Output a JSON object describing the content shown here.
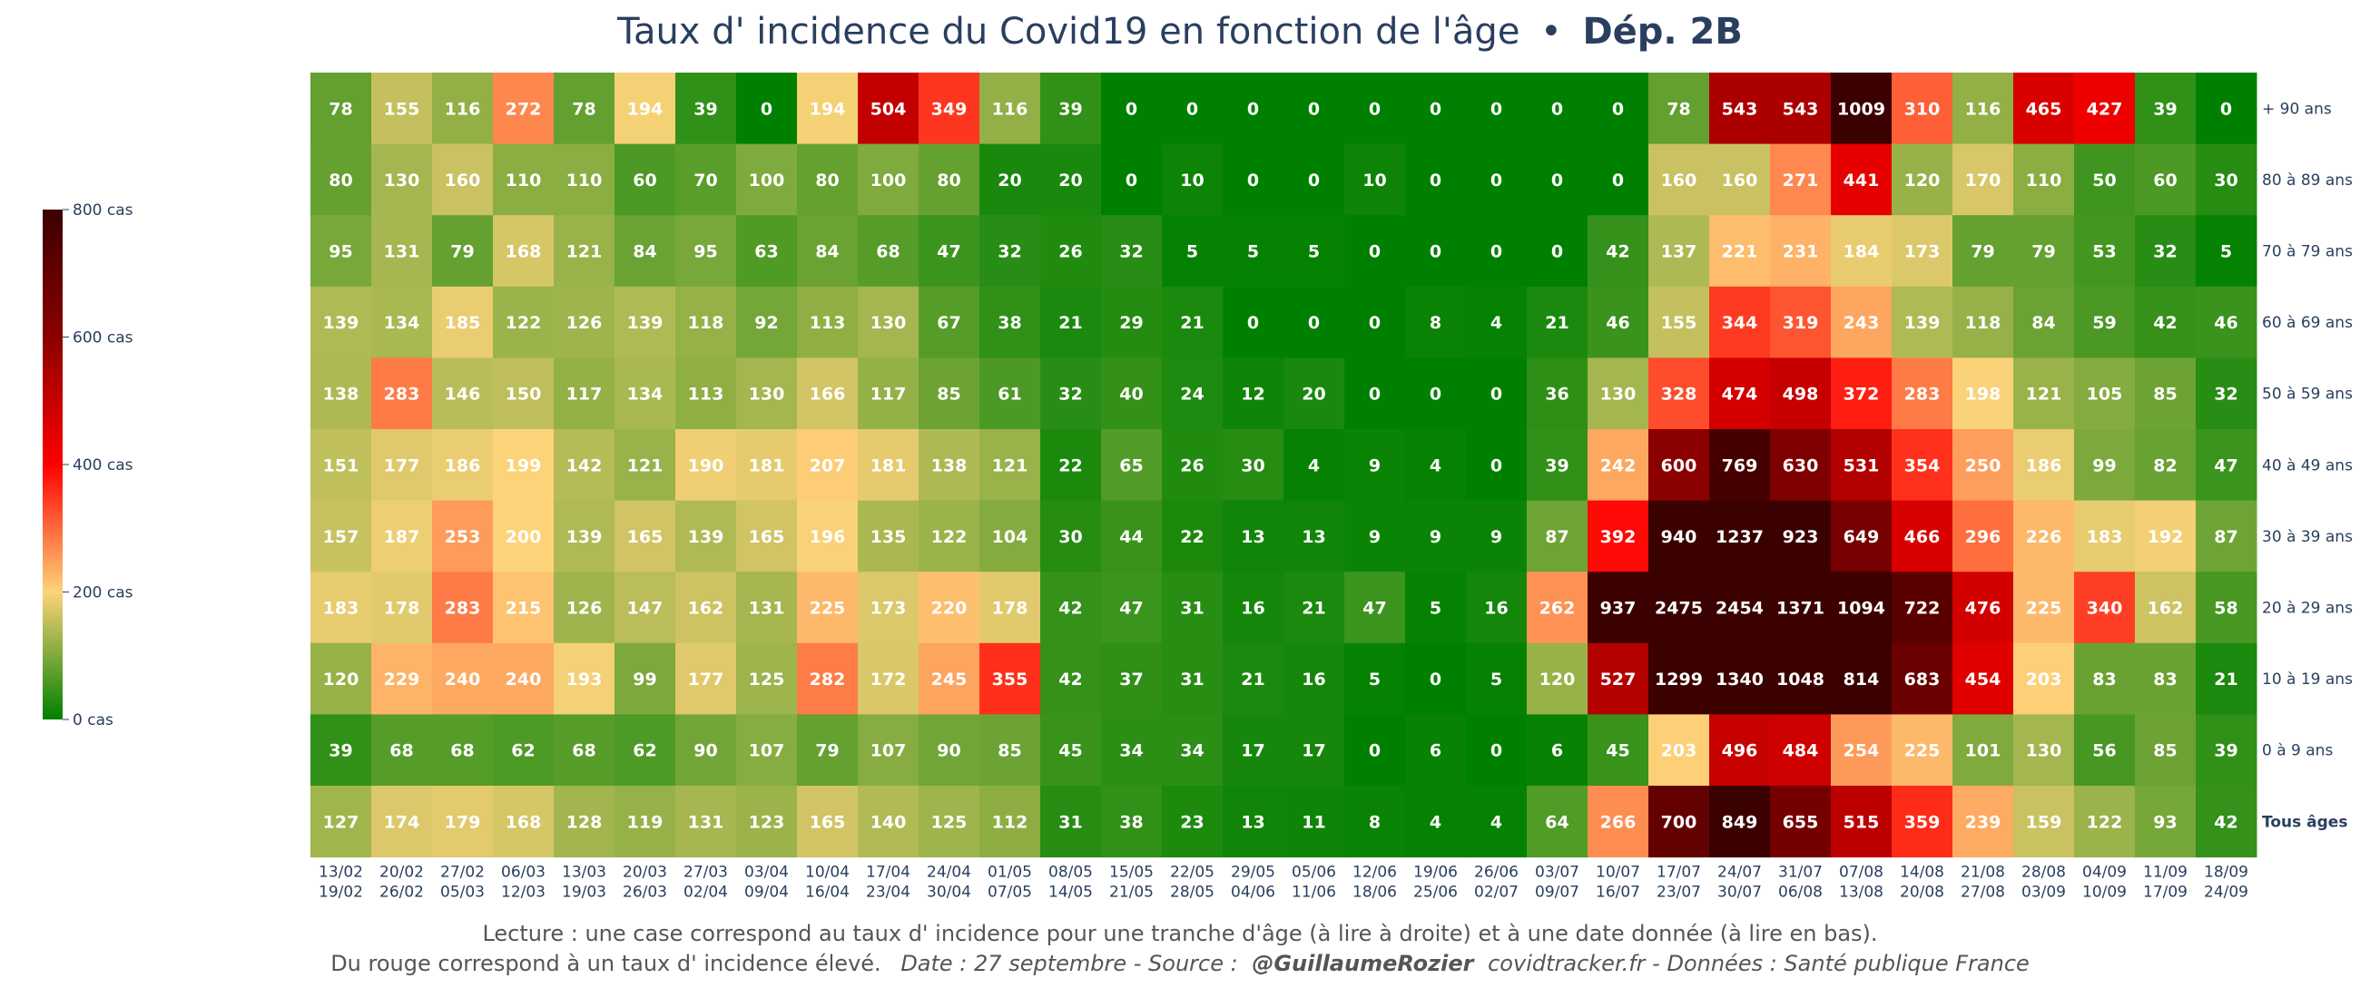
{
  "title": {
    "main": "Taux d' incidence du Covid19 en fonction de l'âge",
    "separator": "•",
    "dep": "Dép. 2B"
  },
  "footer": {
    "line1": "Lecture : une case correspond au taux d' incidence pour une tranche d'âge (à lire à droite) et à une date donnée (à lire en bas).",
    "line2_a": "Du rouge correspond à un taux d' incidence élevé.",
    "line2_b": "Date : 27 septembre - Source :",
    "line2_c": "@GuillaumeRozier",
    "line2_d": "covidtracker.fr - Données : Santé publique France"
  },
  "colorbar": {
    "ticks": [
      {
        "value": 800,
        "label": "800 cas"
      },
      {
        "value": 600,
        "label": "600 cas"
      },
      {
        "value": 400,
        "label": "400 cas"
      },
      {
        "value": 200,
        "label": "200 cas"
      },
      {
        "value": 0,
        "label": "0 cas"
      }
    ],
    "colors": [
      "#008000",
      "#fdd37a",
      "#ff0000",
      "#8b0000",
      "#3b0000"
    ],
    "range": [
      0,
      800
    ]
  },
  "chart_data": {
    "type": "heatmap",
    "title": "Taux d' incidence du Covid19 en fonction de l'âge • Dép. 2B",
    "x_start": [
      "13/02",
      "20/02",
      "27/02",
      "06/03",
      "13/03",
      "20/03",
      "27/03",
      "03/04",
      "10/04",
      "17/04",
      "24/04",
      "01/05",
      "08/05",
      "15/05",
      "22/05",
      "29/05",
      "05/06",
      "12/06",
      "19/06",
      "26/06",
      "03/07",
      "10/07",
      "17/07",
      "24/07",
      "31/07",
      "07/08",
      "14/08",
      "21/08",
      "28/08",
      "04/09",
      "11/09",
      "18/09"
    ],
    "x_end": [
      "19/02",
      "26/02",
      "05/03",
      "12/03",
      "19/03",
      "26/03",
      "02/04",
      "09/04",
      "16/04",
      "23/04",
      "30/04",
      "07/05",
      "14/05",
      "21/05",
      "28/05",
      "04/06",
      "11/06",
      "18/06",
      "25/06",
      "02/07",
      "09/07",
      "16/07",
      "23/07",
      "30/07",
      "06/08",
      "13/08",
      "20/08",
      "27/08",
      "03/09",
      "10/09",
      "17/09",
      "24/09"
    ],
    "rows": [
      {
        "label": "+ 90 ans",
        "bold": false,
        "values": [
          78,
          155,
          116,
          272,
          78,
          194,
          39,
          0,
          194,
          504,
          349,
          116,
          39,
          0,
          0,
          0,
          0,
          0,
          0,
          0,
          0,
          0,
          78,
          543,
          543,
          1009,
          310,
          116,
          465,
          427,
          39,
          0
        ]
      },
      {
        "label": "80 à 89 ans",
        "bold": false,
        "values": [
          80,
          130,
          160,
          110,
          110,
          60,
          70,
          100,
          80,
          100,
          80,
          20,
          20,
          0,
          10,
          0,
          0,
          10,
          0,
          0,
          0,
          0,
          160,
          160,
          271,
          441,
          120,
          170,
          110,
          50,
          60,
          30
        ]
      },
      {
        "label": "70 à 79 ans",
        "bold": false,
        "values": [
          95,
          131,
          79,
          168,
          121,
          84,
          95,
          63,
          84,
          68,
          47,
          32,
          26,
          32,
          5,
          5,
          5,
          0,
          0,
          0,
          0,
          42,
          137,
          221,
          231,
          184,
          173,
          79,
          79,
          53,
          32,
          5
        ]
      },
      {
        "label": "60 à 69 ans",
        "bold": false,
        "values": [
          139,
          134,
          185,
          122,
          126,
          139,
          118,
          92,
          113,
          130,
          67,
          38,
          21,
          29,
          21,
          0,
          0,
          0,
          8,
          4,
          21,
          46,
          155,
          344,
          319,
          243,
          139,
          118,
          84,
          59,
          42,
          46
        ]
      },
      {
        "label": "50 à 59 ans",
        "bold": false,
        "values": [
          138,
          283,
          146,
          150,
          117,
          134,
          113,
          130,
          166,
          117,
          85,
          61,
          32,
          40,
          24,
          12,
          20,
          0,
          0,
          0,
          36,
          130,
          328,
          474,
          498,
          372,
          283,
          198,
          121,
          105,
          85,
          32
        ]
      },
      {
        "label": "40 à 49 ans",
        "bold": false,
        "values": [
          151,
          177,
          186,
          199,
          142,
          121,
          190,
          181,
          207,
          181,
          138,
          121,
          22,
          65,
          26,
          30,
          4,
          9,
          4,
          0,
          39,
          242,
          600,
          769,
          630,
          531,
          354,
          250,
          186,
          99,
          82,
          47
        ]
      },
      {
        "label": "30 à 39 ans",
        "bold": false,
        "values": [
          157,
          187,
          253,
          200,
          139,
          165,
          139,
          165,
          196,
          135,
          122,
          104,
          30,
          44,
          22,
          13,
          13,
          9,
          9,
          9,
          87,
          392,
          940,
          1237,
          923,
          649,
          466,
          296,
          226,
          183,
          192,
          87
        ]
      },
      {
        "label": "20 à 29 ans",
        "bold": false,
        "values": [
          183,
          178,
          283,
          215,
          126,
          147,
          162,
          131,
          225,
          173,
          220,
          178,
          42,
          47,
          31,
          16,
          21,
          47,
          5,
          16,
          262,
          937,
          2475,
          2454,
          1371,
          1094,
          722,
          476,
          225,
          340,
          162,
          58
        ]
      },
      {
        "label": "10 à 19 ans",
        "bold": false,
        "values": [
          120,
          229,
          240,
          240,
          193,
          99,
          177,
          125,
          282,
          172,
          245,
          355,
          42,
          37,
          31,
          21,
          16,
          5,
          0,
          5,
          120,
          527,
          1299,
          1340,
          1048,
          814,
          683,
          454,
          203,
          83,
          83,
          21
        ]
      },
      {
        "label": "0 à 9 ans",
        "bold": false,
        "values": [
          39,
          68,
          68,
          62,
          68,
          62,
          90,
          107,
          79,
          107,
          90,
          85,
          45,
          34,
          34,
          17,
          17,
          0,
          6,
          0,
          6,
          45,
          203,
          496,
          484,
          254,
          225,
          101,
          130,
          56,
          85,
          39
        ]
      },
      {
        "label": "Tous âges",
        "bold": true,
        "values": [
          127,
          174,
          179,
          168,
          128,
          119,
          131,
          123,
          165,
          140,
          125,
          112,
          31,
          38,
          23,
          13,
          11,
          8,
          4,
          4,
          64,
          266,
          700,
          849,
          655,
          515,
          359,
          239,
          159,
          122,
          93,
          42
        ]
      }
    ],
    "color_range": [
      0,
      800
    ]
  }
}
